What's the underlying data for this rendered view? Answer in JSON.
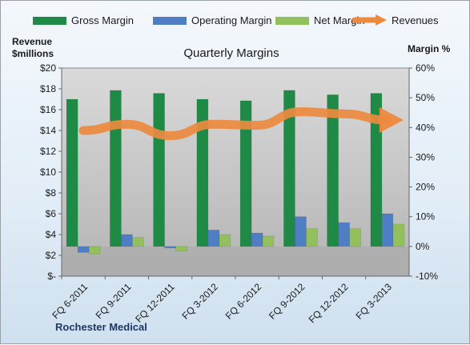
{
  "chart_data": {
    "type": "bar",
    "title": "Quarterly Margins",
    "categories": [
      "FQ 6-2011",
      "FQ 9-2011",
      "FQ 12-2011",
      "FQ 3-2012",
      "FQ 6-2012",
      "FQ 9-2012",
      "FQ 12-2012",
      "FQ 3-2013"
    ],
    "y_left": {
      "label_line1": "Revenue",
      "label_line2": "$millions",
      "range": [
        0,
        20
      ],
      "ticks": [
        "$-",
        "$2",
        "$4",
        "$6",
        "$8",
        "$10",
        "$12",
        "$14",
        "$16",
        "$18",
        "$20"
      ]
    },
    "y_right": {
      "label": "Margin %",
      "range": [
        -10,
        60
      ],
      "ticks": [
        "-10%",
        "0%",
        "10%",
        "20%",
        "30%",
        "40%",
        "50%",
        "60%"
      ]
    },
    "series": [
      {
        "name": "Gross Margin",
        "type": "bar",
        "axis": "right",
        "color": "#1e8a45",
        "values": [
          49.5,
          52.5,
          51.5,
          49.5,
          49.0,
          52.5,
          51.0,
          51.5
        ]
      },
      {
        "name": "Operating Margin",
        "type": "bar",
        "axis": "right",
        "color": "#4f7ec4",
        "values": [
          -2.0,
          4.0,
          -0.5,
          5.5,
          4.5,
          10.0,
          8.0,
          11.0
        ]
      },
      {
        "name": "Net Margin",
        "type": "bar",
        "axis": "right",
        "color": "#92c05d",
        "values": [
          -2.5,
          3.0,
          -1.5,
          4.0,
          3.5,
          6.0,
          6.0,
          7.5
        ]
      },
      {
        "name": "Revenues",
        "type": "line",
        "axis": "left",
        "color": "#ed8a3f",
        "values": [
          14.0,
          14.6,
          13.5,
          14.6,
          14.5,
          15.8,
          15.6,
          15.0
        ]
      }
    ],
    "legend_position": "top",
    "grid": false
  },
  "company": "Rochester Medical",
  "colors": {
    "plot_top": "#d6d6d6",
    "plot_bottom": "#b0b0b0",
    "plot_shade": "#c9c9c9"
  }
}
